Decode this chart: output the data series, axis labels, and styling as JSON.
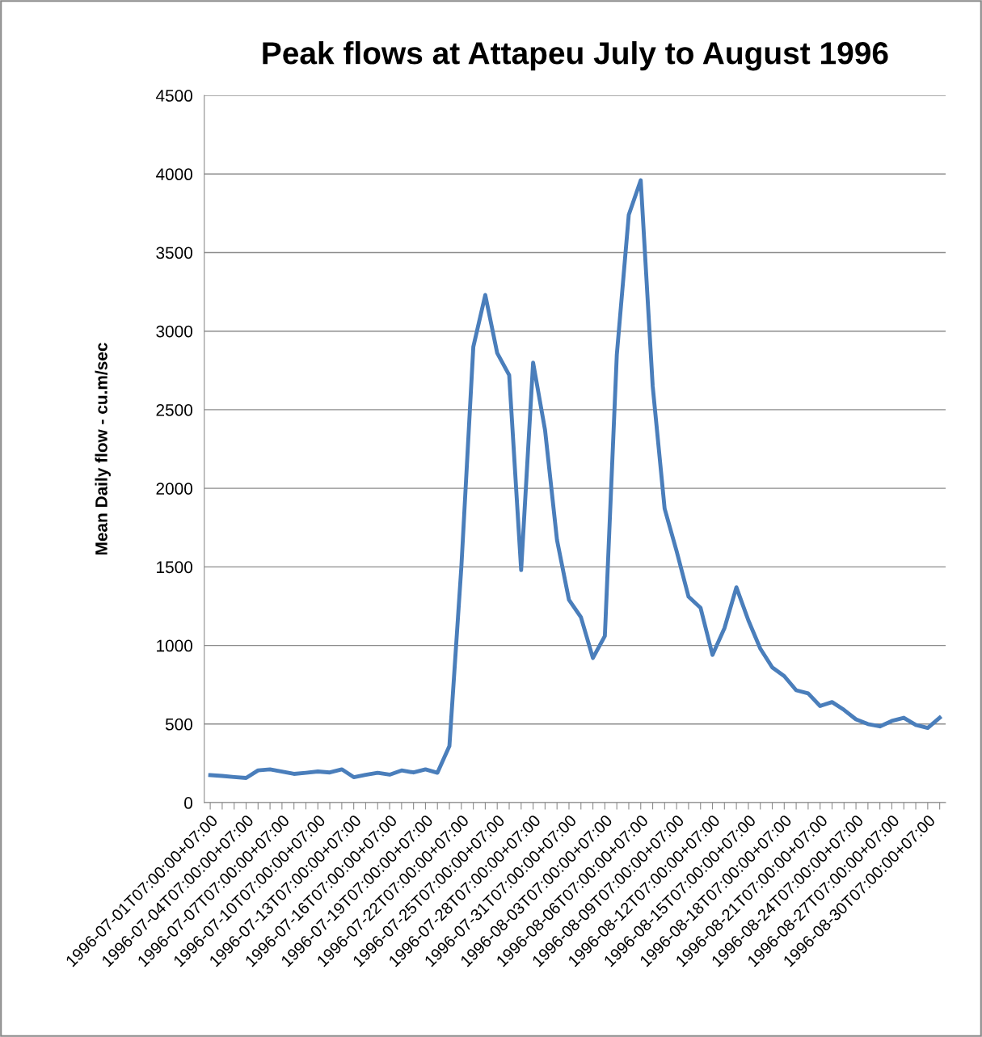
{
  "chart_data": {
    "type": "line",
    "title": "Peak flows at Attapeu July to August 1996",
    "ylabel": "Mean Daily flow - cu.m/sec",
    "categories": [
      "1996-07-01T07:00:00+07:00",
      null,
      null,
      "1996-07-04T07:00:00+07:00",
      null,
      null,
      "1996-07-07T07:00:00+07:00",
      null,
      null,
      "1996-07-10T07:00:00+07:00",
      null,
      null,
      "1996-07-13T07:00:00+07:00",
      null,
      null,
      "1996-07-16T07:00:00+07:00",
      null,
      null,
      "1996-07-19T07:00:00+07:00",
      null,
      null,
      "1996-07-22T07:00:00+07:00",
      null,
      null,
      "1996-07-25T07:00:00+07:00",
      null,
      null,
      "1996-07-28T07:00:00+07:00",
      null,
      null,
      "1996-07-31T07:00:00+07:00",
      null,
      null,
      "1996-08-03T07:00:00+07:00",
      null,
      null,
      "1996-08-06T07:00:00+07:00",
      null,
      null,
      "1996-08-09T07:00:00+07:00",
      null,
      null,
      "1996-08-12T07:00:00+07:00",
      null,
      null,
      "1996-08-15T07:00:00+07:00",
      null,
      null,
      "1996-08-18T07:00:00+07:00",
      null,
      null,
      "1996-08-21T07:00:00+07:00",
      null,
      null,
      "1996-08-24T07:00:00+07:00",
      null,
      null,
      "1996-08-27T07:00:00+07:00",
      null,
      null,
      "1996-08-30T07:00:00+07:00",
      null
    ],
    "series": [
      {
        "color": "#4a7ebb",
        "values": [
          175,
          170,
          163,
          157,
          205,
          212,
          198,
          183,
          190,
          198,
          192,
          212,
          162,
          177,
          190,
          178,
          205,
          192,
          212,
          190,
          360,
          1500,
          2900,
          3230,
          2860,
          2720,
          1480,
          2800,
          2370,
          1670,
          1290,
          1180,
          920,
          1060,
          2850,
          3740,
          3960,
          2650,
          1870,
          1600,
          1310,
          1240,
          940,
          1110,
          1370,
          1160,
          980,
          860,
          805,
          715,
          695,
          615,
          640,
          590,
          530,
          500,
          485,
          520,
          540,
          495,
          475,
          540
        ]
      }
    ],
    "ylim": [
      0,
      4500
    ],
    "yticks": [
      0,
      500,
      1000,
      1500,
      2000,
      2500,
      3000,
      3500,
      4000,
      4500
    ],
    "grid": "y",
    "legend": false,
    "marker": "none",
    "line_style": "solid"
  }
}
